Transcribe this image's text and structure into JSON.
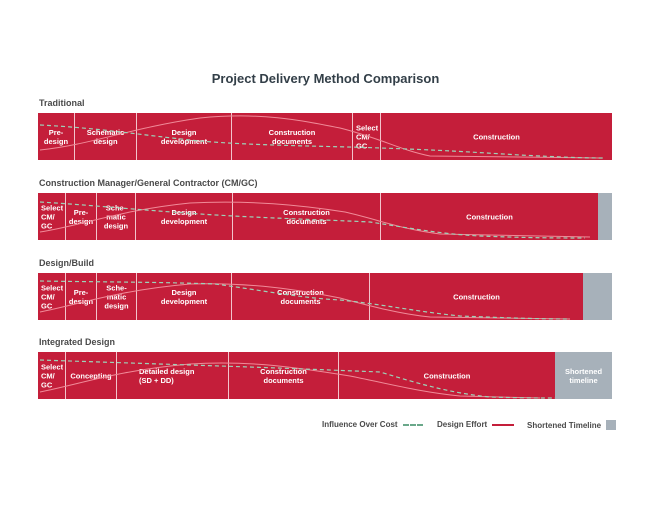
{
  "title": "Project Delivery Method Comparison",
  "colors": {
    "bar": "#c41e3a",
    "divider": "#f2c4cc",
    "shortened": "#a7b1ba",
    "influence": "#6aa88a",
    "effort": "#c41e3a"
  },
  "rows": [
    {
      "label": "Traditional",
      "segments": [
        {
          "label": "Pre-\ndesign"
        },
        {
          "label": "Schematic\ndesign"
        },
        {
          "label": "Design\ndevelopment"
        },
        {
          "label": "Construction\ndocuments"
        },
        {
          "label": "Select\nCM/\nGC"
        },
        {
          "label": "Construction"
        }
      ],
      "shortened": null
    },
    {
      "label": "Construction Manager/General Contractor (CM/GC)",
      "segments": [
        {
          "label": "Select\nCM/\nGC"
        },
        {
          "label": "Pre-\ndesign"
        },
        {
          "label": "Sche-\nmatic\ndesign"
        },
        {
          "label": "Design\ndevelopment"
        },
        {
          "label": "Construction\ndocuments"
        },
        {
          "label": "Construction"
        }
      ],
      "shortened": ""
    },
    {
      "label": "Design/Build",
      "segments": [
        {
          "label": "Select\nCM/\nGC"
        },
        {
          "label": "Pre-\ndesign"
        },
        {
          "label": "Sche-\nmatic\ndesign"
        },
        {
          "label": "Design\ndevelopment"
        },
        {
          "label": "Construction\ndocuments"
        },
        {
          "label": "Construction"
        }
      ],
      "shortened": ""
    },
    {
      "label": "Integrated Design",
      "segments": [
        {
          "label": "Select\nCM/\nGC"
        },
        {
          "label": "Concepting"
        },
        {
          "label": "Detailed design\n(SD + DD)"
        },
        {
          "label": "Construction\ndocuments"
        },
        {
          "label": "Construction"
        }
      ],
      "shortened": "Shortened\ntimeline"
    }
  ],
  "legend": {
    "influence": "Influence Over Cost",
    "effort": "Design Effort",
    "shortened": "Shortened Timeline"
  }
}
